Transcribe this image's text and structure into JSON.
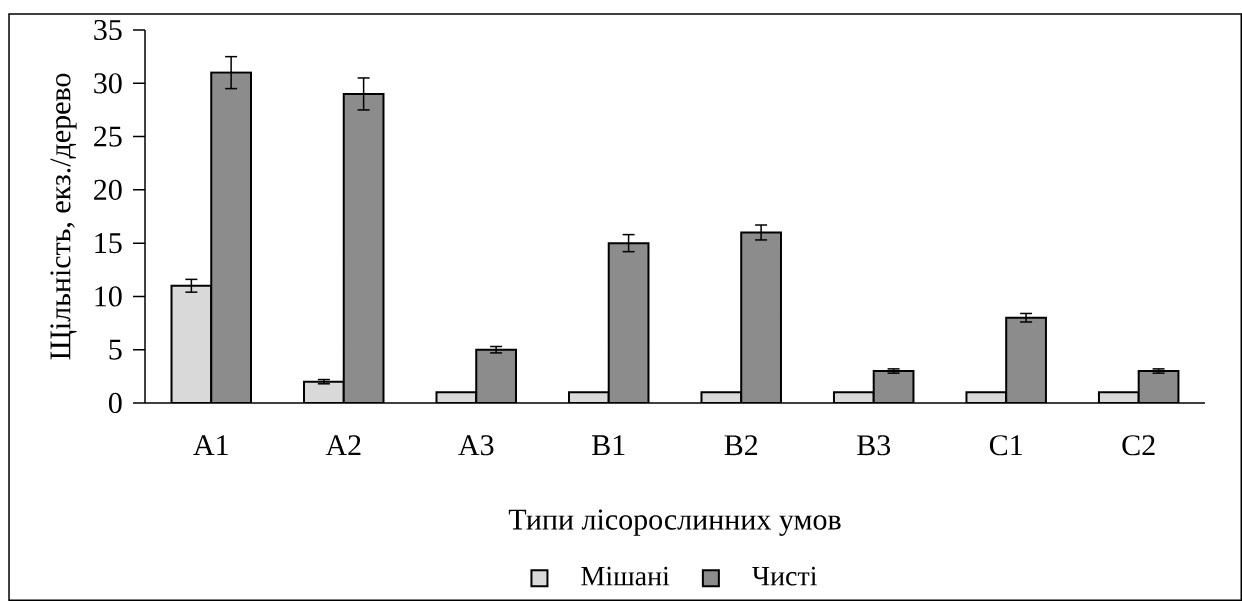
{
  "chart_data": {
    "type": "bar",
    "xlabel": "Типи лісорослинних умов",
    "ylabel": "Щільність, екз./дерево",
    "categories": [
      "A1",
      "A2",
      "A3",
      "B1",
      "B2",
      "B3",
      "C1",
      "C2"
    ],
    "series": [
      {
        "name": "Мішані",
        "color": "#d9d9d9",
        "values": [
          11,
          2,
          1,
          1,
          1,
          1,
          1,
          1
        ],
        "errors": [
          0.6,
          0.2,
          null,
          null,
          null,
          null,
          null,
          null
        ]
      },
      {
        "name": "Чисті",
        "color": "#8c8c8c",
        "values": [
          31,
          29,
          5,
          15,
          16,
          3,
          8,
          3
        ],
        "errors": [
          1.5,
          1.5,
          0.3,
          0.8,
          0.7,
          0.2,
          0.4,
          0.2
        ]
      }
    ],
    "ylim": [
      0,
      35
    ],
    "yticks": [
      0,
      5,
      10,
      15,
      20,
      25,
      30,
      35
    ],
    "grid": false,
    "legend": "bottom"
  }
}
